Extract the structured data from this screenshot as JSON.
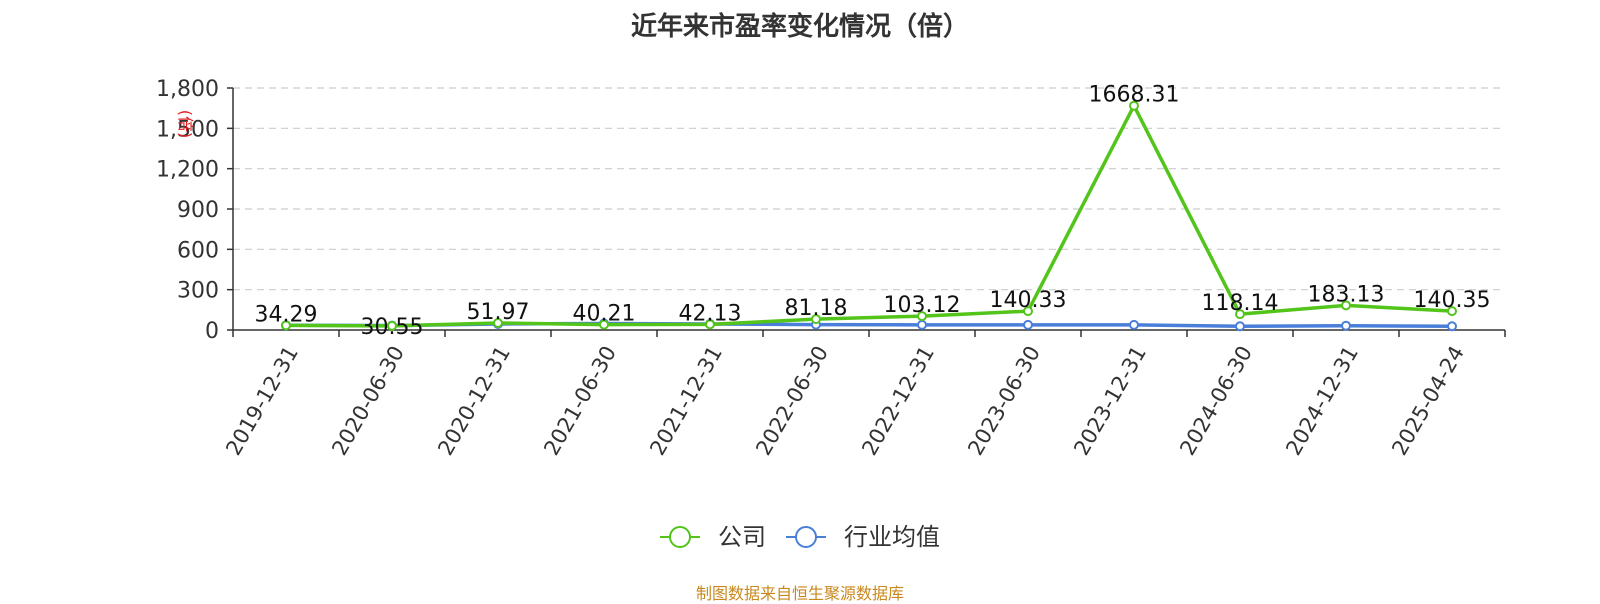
{
  "title": "近年来市盈率变化情况（倍）",
  "unit_label": "(倍)",
  "source": "制图数据来自恒生聚源数据库",
  "colors": {
    "company": "#52c41a",
    "industry": "#4a7fd9",
    "grid": "#cccccc",
    "axis": "#333333"
  },
  "chart_data": {
    "type": "line",
    "title": "近年来市盈率变化情况（倍）",
    "ylabel": "(倍)",
    "ylim": [
      0,
      1800
    ],
    "yticks": [
      "0",
      "300",
      "600",
      "900",
      "1,200",
      "1,500",
      "1,800"
    ],
    "ytick_values": [
      0,
      300,
      600,
      900,
      1200,
      1500,
      1800
    ],
    "grid": true,
    "legend_position": "bottom",
    "categories": [
      "2019-12-31",
      "2020-06-30",
      "2020-12-31",
      "2021-06-30",
      "2021-12-31",
      "2022-06-30",
      "2022-12-31",
      "2023-06-30",
      "2023-12-31",
      "2024-06-30",
      "2024-12-31",
      "2025-04-24"
    ],
    "series": [
      {
        "name": "公司",
        "values": [
          34.29,
          30.55,
          51.97,
          40.21,
          42.13,
          81.18,
          103.12,
          140.33,
          1668.31,
          118.14,
          183.13,
          140.35
        ],
        "labels": [
          "34.29",
          "30.55",
          "51.97",
          "40.21",
          "42.13",
          "81.18",
          "103.12",
          "140.33",
          "1668.31",
          "118.14",
          "183.13",
          "140.35"
        ]
      },
      {
        "name": "行业均值",
        "values": [
          35,
          33,
          45,
          48,
          45,
          40,
          38,
          38,
          38,
          28,
          32,
          28
        ]
      }
    ]
  }
}
